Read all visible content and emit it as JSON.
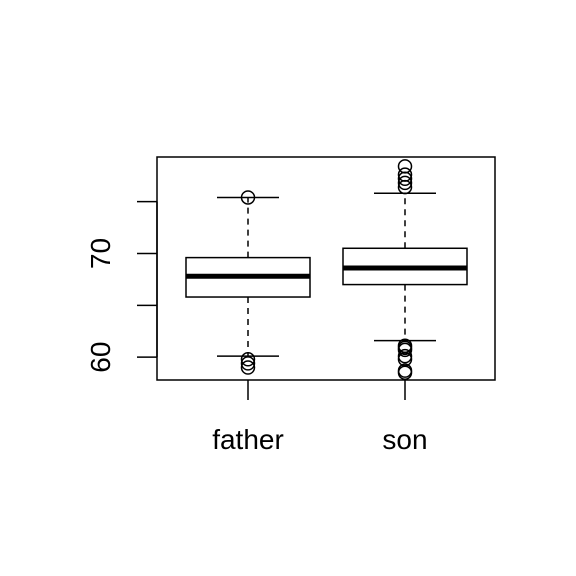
{
  "chart_data": {
    "type": "boxplot",
    "title": "",
    "xlabel": "",
    "ylabel": "",
    "categories": [
      "father",
      "son"
    ],
    "ylim": [
      57.8,
      79.3
    ],
    "y_ticks": [
      60,
      65,
      70,
      75
    ],
    "y_tick_labels": [
      {
        "value": 60,
        "label": "60"
      },
      {
        "value": 70,
        "label": "70"
      }
    ],
    "grid": false,
    "legend": "none",
    "color": "#000000",
    "boxes": [
      {
        "name": "father",
        "whisker_low": 60.1,
        "q1": 65.8,
        "median": 67.8,
        "q3": 69.6,
        "whisker_high": 75.4,
        "outliers": [
          59.0,
          59.4,
          59.8,
          75.4
        ]
      },
      {
        "name": "son",
        "whisker_low": 61.6,
        "q1": 67.0,
        "median": 68.6,
        "q3": 70.5,
        "whisker_high": 75.8,
        "outliers": [
          58.5,
          58.7,
          59.8,
          60.1,
          60.7,
          60.9,
          61.1,
          76.4,
          76.8,
          77.2,
          77.6,
          78.4
        ]
      }
    ]
  }
}
